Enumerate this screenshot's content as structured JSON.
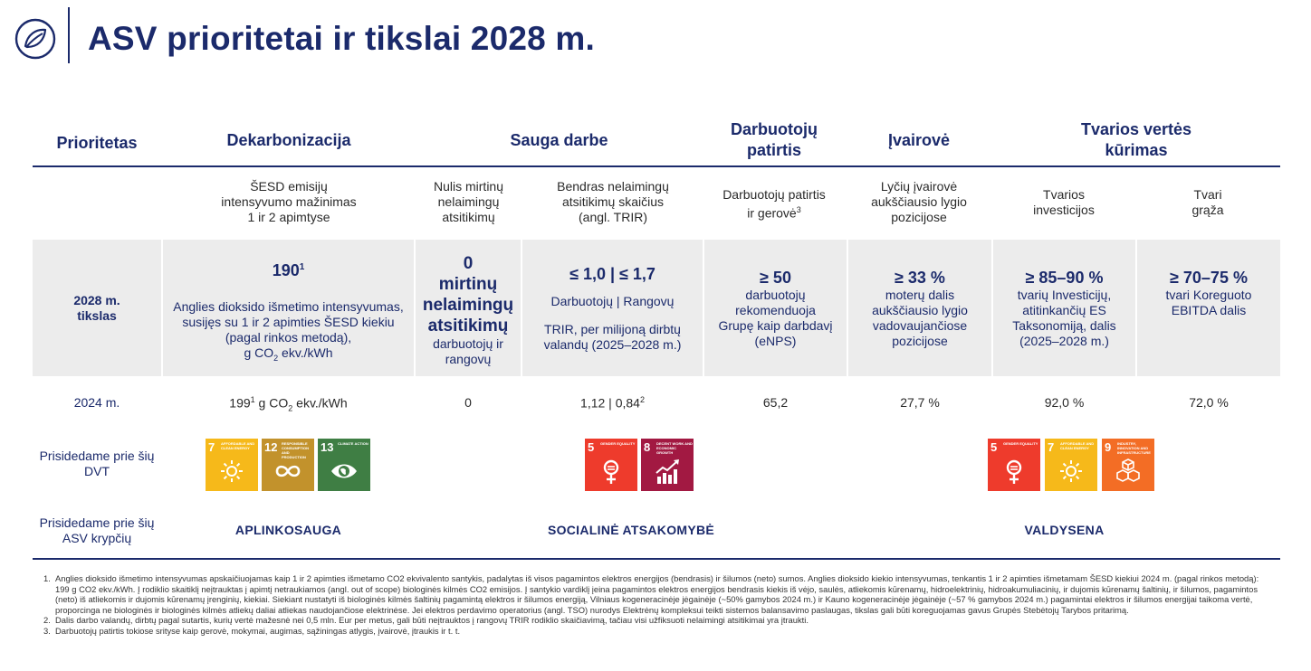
{
  "title": "ASV prioritetai ir tikslai 2028 m.",
  "colors": {
    "navy": "#1b2a6b",
    "band": "#ececec",
    "sdg7": "#f6b91a",
    "sdg12": "#c2922c",
    "sdg13": "#3f7e44",
    "sdg5": "#ee3b2c",
    "sdg8": "#a21942",
    "sdg9": "#f36d25"
  },
  "headers": {
    "prioritetas": "Prioritetas",
    "dekarbonizacija": "Dekarbonizacija",
    "sauga": "Sauga darbe",
    "patirtis_1": "Darbuotojų",
    "patirtis_2": "patirtis",
    "ivairove": "Įvairovė",
    "tvarios_1": "Tvarios vertės",
    "tvarios_2": "kūrimas"
  },
  "subheaders": {
    "sesd_1": "ŠESD emisijų",
    "sesd_2": "intensyvumo mažinimas",
    "sesd_3": "1 ir 2 apimtyse",
    "nulis_1": "Nulis mirtinų",
    "nulis_2": "nelaimingų",
    "nulis_3": "atsitikimų",
    "trir_1": "Bendras nelaimingų",
    "trir_2": "atsitikimų skaičius",
    "trir_3": "(angl. TRIR)",
    "patirtis_1": "Darbuotojų patirtis",
    "patirtis_2": "ir gerovė",
    "patirtis_sup": "3",
    "lytis_1": "Lyčių įvairovė",
    "lytis_2": "aukščiausio lygio",
    "lytis_3": "pozicijose",
    "invest_1": "Tvarios",
    "invest_2": "investicijos",
    "graza_1": "Tvari",
    "graza_2": "grąža"
  },
  "target_row": {
    "label_1": "2028 m.",
    "label_2": "tikslas",
    "dekarb_value": "190",
    "dekarb_sup": "1",
    "dekarb_1": "Anglies dioksido išmetimo intensyvumas,",
    "dekarb_2": "susijęs su 1 ir 2 apimties ŠESD kiekiu",
    "dekarb_3": "(pagal rinkos metodą),",
    "dekarb_4a": "g CO",
    "dekarb_4sub": "2",
    "dekarb_4b": " ekv./kWh",
    "nulis_value": "0",
    "nulis_b1": "mirtinų",
    "nulis_b2": "nelaimingų",
    "nulis_b3": "atsitikimų",
    "nulis_s1": "darbuotojų ir",
    "nulis_s2": "rangovų",
    "trir_value": "≤ 1,0 | ≤ 1,7",
    "trir_1": "Darbuotojų | Rangovų",
    "trir_2": "TRIR, per milijoną dirbtų",
    "trir_3": "valandų (2025–2028 m.)",
    "enps_value": "≥ 50",
    "enps_1": "darbuotojų",
    "enps_2": "rekomenduoja",
    "enps_3": "Grupę kaip darbdavį",
    "enps_4": "(eNPS)",
    "moterys_value": "≥ 33 %",
    "moterys_1": "moterų dalis",
    "moterys_2": "aukščiausio lygio",
    "moterys_3": "vadovaujančiose",
    "moterys_4": "pozicijose",
    "invest_value": "≥ 85–90 %",
    "invest_1": "tvarių Investicijų,",
    "invest_2": "atitinkančių ES",
    "invest_3": "Taksonomiją, dalis",
    "invest_4": "(2025–2028 m.)",
    "graza_value": "≥ 70–75 %",
    "graza_1": "tvari Koreguoto",
    "graza_2": "EBITDA dalis"
  },
  "row_2024": {
    "label": "2024 m.",
    "dekarb_a": "199",
    "dekarb_sup": "1",
    "dekarb_b": " g CO",
    "dekarb_sub": "2",
    "dekarb_c": " ekv./kWh",
    "nulis": "0",
    "trir": "1,12 | 0,84",
    "trir_sup": "2",
    "enps": "65,2",
    "moterys": "27,7 %",
    "invest": "92,0 %",
    "graza": "72,0 %"
  },
  "dvt": {
    "label_1": "Prisidedame prie šių",
    "label_2": "DVT",
    "goals": [
      {
        "num": "7",
        "text": "Affordable and clean energy"
      },
      {
        "num": "12",
        "text": "Responsible consumption and production"
      },
      {
        "num": "13",
        "text": "Climate action"
      },
      {
        "num": "5",
        "text": "Gender equality"
      },
      {
        "num": "8",
        "text": "Decent work and economic growth"
      },
      {
        "num": "5",
        "text": "Gender equality"
      },
      {
        "num": "7",
        "text": "Affordable and clean energy"
      },
      {
        "num": "9",
        "text": "Industry, innovation and infrastructure"
      }
    ]
  },
  "asv": {
    "label_1": "Prisidedame prie šių",
    "label_2": "ASV krypčių",
    "aplinkosauga": "APLINKOSAUGA",
    "socialine": "SOCIALINĖ ATSAKOMYBĖ",
    "valdysena": "VALDYSENA"
  },
  "footnotes": [
    {
      "n": "1.",
      "text": "Anglies dioksido išmetimo intensyvumas apskaičiuojamas kaip 1 ir 2 apimties išmetamo CO2 ekvivalento santykis, padalytas iš visos pagamintos elektros energijos (bendrasis) ir šilumos (neto) sumos. Anglies dioksido kiekio intensyvumas, tenkantis 1 ir 2 apimties išmetamam ŠESD kiekiui 2024 m. (pagal rinkos metodą): 199 g CO2 ekv./kWh. Į rodiklio skaitiklį neįtrauktas į apimtį netraukiamos (angl. out of scope) biologinės kilmės CO2 emisijos. Į santykio vardiklį įeina pagamintos elektros energijos bendrasis kiekis iš vėjo, saulės, atliekomis kūrenamų, hidroelektrinių, hidroakumuliacinių, ir dujomis kūrenamų šaltinių, ir šilumos, pagamintos (neto) iš atliekomis ir dujomis kūrenamų įrenginių, kiekiai. Siekiant nustatyti iš biologinės kilmės šaltinių pagamintą elektros ir šilumos energiją, Vilniaus kogeneracinėje jėgainėje (~50% gamybos 2024 m.) ir Kauno kogeneracinėje jėgainėje (~57 % gamybos 2024 m.) pagamintai elektros ir šilumos energijai taikoma vertė, proporcinga ne biologinės ir biologinės kilmės atliekų daliai atliekas naudojančiose elektrinėse. Jei elektros perdavimo operatorius (angl. TSO) nurodys Elektrėnų kompleksui teikti sistemos balansavimo paslaugas, tikslas gali būti koreguojamas gavus Grupės Stebėtojų Tarybos pritarimą."
    },
    {
      "n": "2.",
      "text": "Dalis darbo valandų, dirbtų pagal sutartis, kurių vertė mažesnė nei 0,5 mln. Eur per metus, gali būti neįtrauktos į rangovų TRIR rodiklio skaičiavimą, tačiau visi užfiksuoti nelaimingi atsitikimai yra įtraukti."
    },
    {
      "n": "3.",
      "text": "Darbuotojų patirtis tokiose srityse kaip gerovė, mokymai, augimas, sąžiningas atlygis, įvairovė, įtraukis ir t. t."
    }
  ]
}
